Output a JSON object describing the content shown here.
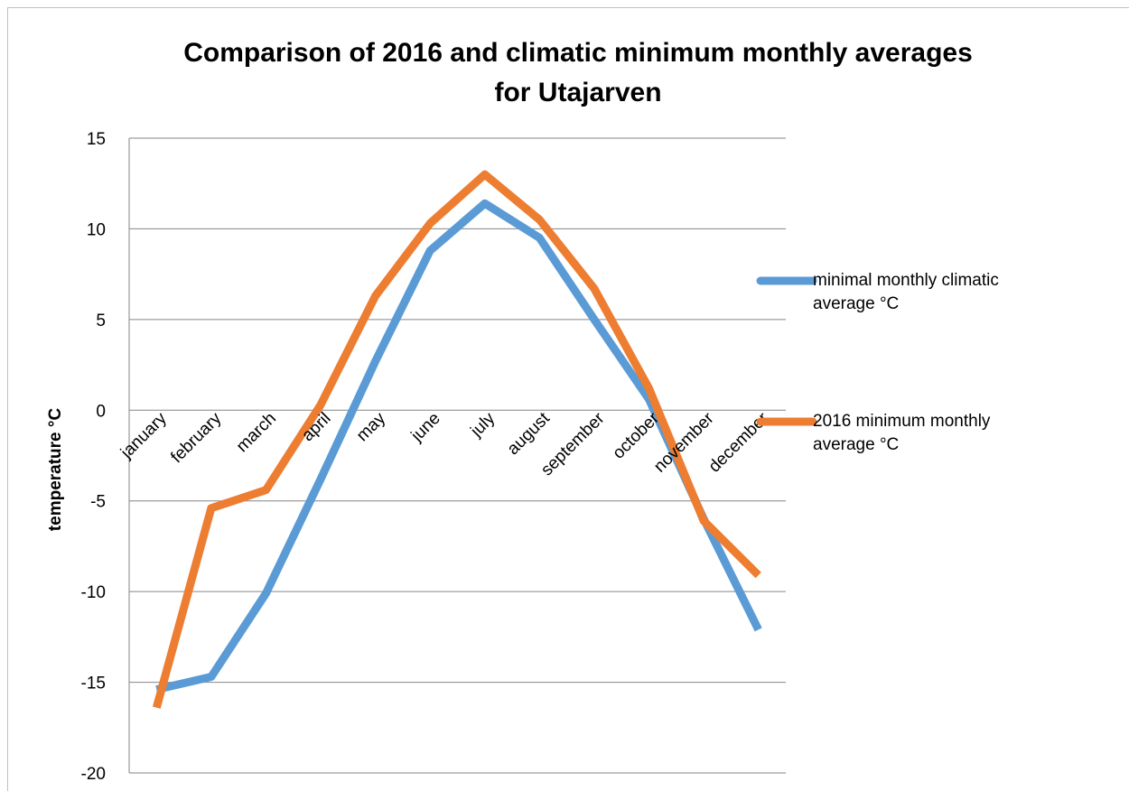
{
  "chart_data": {
    "type": "line",
    "title": [
      "Comparison of 2016 and climatic minimum monthly  averages",
      "for Utajarven"
    ],
    "y_label": "temperature °C",
    "categories": [
      "january",
      "february",
      "march",
      "april",
      "may",
      "june",
      "july",
      "august",
      "september",
      "october",
      "november",
      "december"
    ],
    "series": [
      {
        "name": "minimal monthly climatic average °C",
        "color": "#5b9bd5",
        "values": [
          -15.4,
          -14.7,
          -10.1,
          -3.8,
          2.7,
          8.8,
          11.4,
          9.5,
          5.0,
          0.6,
          -6.0,
          -12.1
        ]
      },
      {
        "name": "2016 minimum monthly average °C",
        "color": "#ed7d31",
        "values": [
          -16.4,
          -5.4,
          -4.4,
          0.3,
          6.3,
          10.3,
          13.0,
          10.5,
          6.7,
          1.2,
          -6.1,
          -9.1
        ]
      }
    ],
    "ylim": [
      -20,
      15
    ],
    "yticks": [
      -20,
      -15,
      -10,
      -5,
      0,
      5,
      10,
      15
    ],
    "grid": true
  }
}
